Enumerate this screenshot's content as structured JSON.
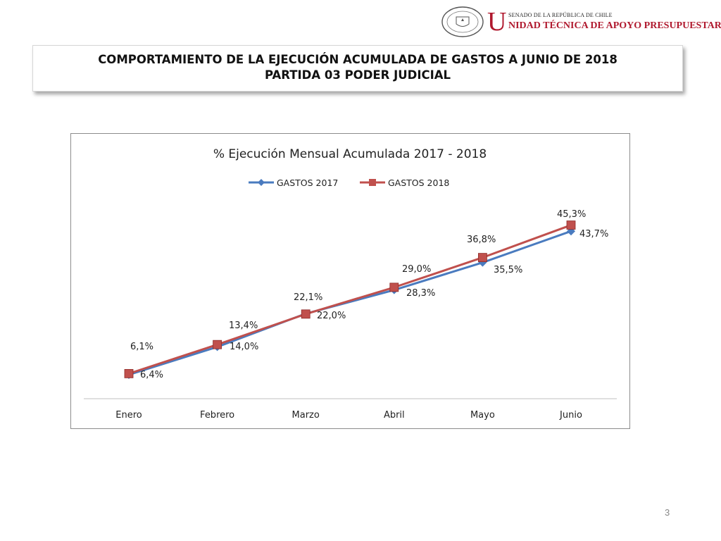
{
  "header": {
    "seal_icon": "senate-seal-icon",
    "org_initial": "U",
    "org_line1": "SENADO DE LA REPÚBLICA DE CHILE",
    "org_line2": "NIDAD TÉCNICA DE APOYO PRESUPUESTARIO"
  },
  "slide": {
    "title_line1": "COMPORTAMIENTO DE LA EJECUCIÓN ACUMULADA DE GASTOS A JUNIO DE 2018",
    "title_line2": "PARTIDA 03 PODER JUDICIAL",
    "page_number": "3"
  },
  "chart_data": {
    "type": "line",
    "title": "% Ejecución Mensual Acumulada 2017 - 2018",
    "categories": [
      "Enero",
      "Febrero",
      "Marzo",
      "Abril",
      "Mayo",
      "Junio"
    ],
    "series": [
      {
        "name": "GASTOS 2017",
        "color": "#4a7bbf",
        "marker": "diamond",
        "values": [
          6.1,
          13.4,
          22.1,
          28.3,
          35.5,
          43.7
        ],
        "labels": [
          "6,1%",
          "13,4%",
          "22,1%",
          "28,3%",
          "35,5%",
          "43,7%"
        ]
      },
      {
        "name": "GASTOS 2018",
        "color": "#c0504d",
        "marker": "square",
        "values": [
          6.4,
          14.0,
          22.0,
          29.0,
          36.8,
          45.3
        ],
        "labels": [
          "6,4%",
          "14,0%",
          "22,0%",
          "29,0%",
          "36,8%",
          "45,3%"
        ]
      }
    ],
    "legend_position": "top",
    "grid": false,
    "xlabel": "",
    "ylabel": ""
  }
}
